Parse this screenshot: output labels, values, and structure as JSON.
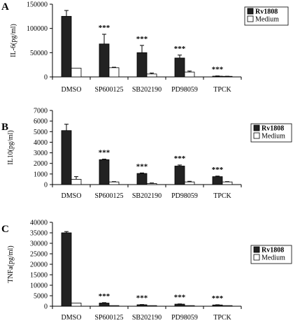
{
  "chart_data": [
    {
      "type": "bar",
      "panel_label": "A",
      "ylabel": "IL-6(pg/ml)",
      "categories": [
        "DMSO",
        "SP600125",
        "SB202190",
        "PD98059",
        "TPCK"
      ],
      "ylim": [
        0,
        150000
      ],
      "yticks": [
        0,
        50000,
        100000,
        150000
      ],
      "legend_position": "top-right",
      "series": [
        {
          "name": "Rv1808",
          "color": "#222222",
          "values": [
            125000,
            68000,
            50000,
            39000,
            1500
          ],
          "errors": [
            12000,
            20000,
            15000,
            6000,
            500
          ]
        },
        {
          "name": "Medium",
          "color": "#ffffff",
          "values": [
            18000,
            19000,
            6000,
            10000,
            1000
          ],
          "errors": [
            0,
            1000,
            2000,
            2000,
            300
          ]
        }
      ],
      "annotations": [
        "",
        "***",
        "***",
        "***",
        "***"
      ]
    },
    {
      "type": "bar",
      "panel_label": "B",
      "ylabel": "IL10(pg/ml)",
      "categories": [
        "DMSO",
        "SP600125",
        "SB202190",
        "PD98059",
        "TPCK"
      ],
      "ylim": [
        0,
        7000
      ],
      "yticks": [
        0,
        1000,
        2000,
        3000,
        4000,
        5000,
        6000,
        7000
      ],
      "legend_position": "right",
      "series": [
        {
          "name": "Rv1808",
          "color": "#222222",
          "values": [
            5100,
            2350,
            1050,
            1750,
            750
          ],
          "errors": [
            600,
            50,
            50,
            100,
            50
          ]
        },
        {
          "name": "Medium",
          "color": "#ffffff",
          "values": [
            500,
            250,
            100,
            250,
            250
          ],
          "errors": [
            250,
            30,
            50,
            60,
            30
          ]
        }
      ],
      "annotations": [
        "",
        "***",
        "***",
        "***",
        "***"
      ]
    },
    {
      "type": "bar",
      "panel_label": "C",
      "ylabel": "TNFa(pg/ml)",
      "categories": [
        "DMSO",
        "SP600125",
        "SB202190",
        "PD98059",
        "TPCK"
      ],
      "ylim": [
        0,
        40000
      ],
      "yticks": [
        0,
        5000,
        10000,
        15000,
        20000,
        25000,
        30000,
        35000,
        40000
      ],
      "legend_position": "right",
      "series": [
        {
          "name": "Rv1808",
          "color": "#222222",
          "values": [
            35000,
            1500,
            700,
            1000,
            600
          ],
          "errors": [
            600,
            200,
            100,
            100,
            100
          ]
        },
        {
          "name": "Medium",
          "color": "#ffffff",
          "values": [
            1500,
            300,
            300,
            300,
            300
          ],
          "errors": [
            0,
            0,
            0,
            0,
            0
          ]
        }
      ],
      "annotations": [
        "",
        "***",
        "***",
        "***",
        "***"
      ]
    }
  ]
}
